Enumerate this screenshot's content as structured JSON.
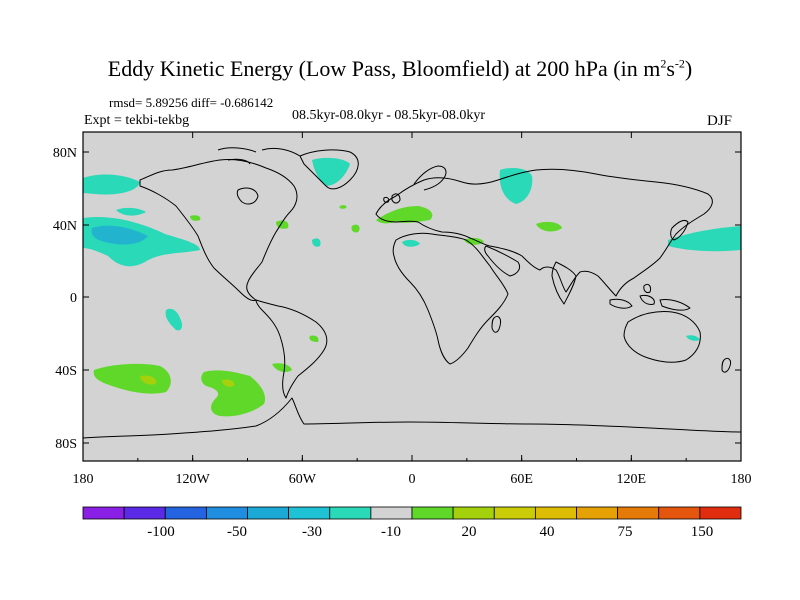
{
  "title": {
    "main": "Eddy Kinetic Energy (Low Pass, Bloomfield) at 200 hPa (in m",
    "sup1": "2",
    "mid": "s",
    "sup2": "-2",
    "end": ")"
  },
  "stats": "rmsd= 5.89256 diff= -0.686142",
  "expt": "Expt = tekbi-tekbg",
  "period": "08.5kyr-08.0kyr - 08.5kyr-08.0kyr",
  "season": "DJF",
  "colors": {
    "background": "#d3d3d3",
    "land_outline": "#000000",
    "neg_weak": "#29d9b8",
    "neg_mod": "#22b4cf",
    "pos_weak": "#5fd82a",
    "pos_mod": "#a4d10c"
  },
  "map": {
    "lon_ticks": [
      "180",
      "120W",
      "60W",
      "0",
      "60E",
      "120E",
      "180"
    ],
    "lat_ticks": [
      "80N",
      "40N",
      "0",
      "40S",
      "80S"
    ]
  },
  "colorbar": {
    "colors": [
      "#8a1fe6",
      "#5a2ae6",
      "#2464e0",
      "#1f8ee0",
      "#1ca9d6",
      "#1fc2d4",
      "#29d9b8",
      "#d3d3d3",
      "#5fd82a",
      "#a4d10c",
      "#c9cc06",
      "#dcbd04",
      "#e6a204",
      "#e67a08",
      "#e4560e",
      "#e02d10"
    ],
    "labels": [
      "-100",
      "-50",
      "-30",
      "-10",
      "20",
      "40",
      "75",
      "150"
    ]
  }
}
